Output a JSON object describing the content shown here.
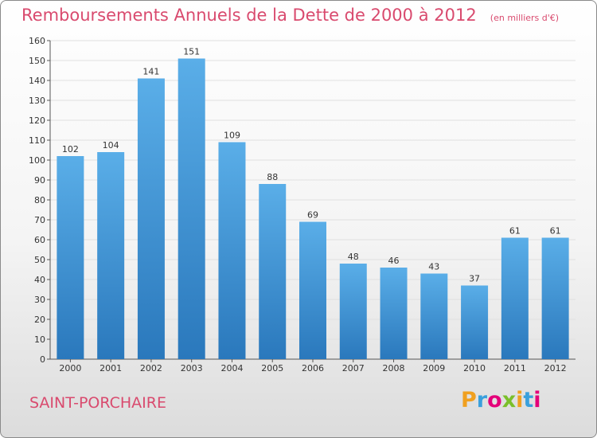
{
  "title": "Remboursements Annuels de la Dette de 2000 à 2012",
  "subtitle": "(en milliers d'€)",
  "commune": "SAINT-PORCHAIRE",
  "logo": {
    "text": "Proxiti",
    "letters": [
      {
        "char": "P",
        "color": "#f0a020"
      },
      {
        "char": "r",
        "color": "#3aa0dc"
      },
      {
        "char": "o",
        "color": "#e4007a"
      },
      {
        "char": "x",
        "color": "#7bbf2a"
      },
      {
        "char": "i",
        "color": "#f0a020"
      },
      {
        "char": "t",
        "color": "#3aa0dc"
      },
      {
        "char": "i",
        "color": "#e4007a"
      }
    ]
  },
  "colors": {
    "bar_top": "#5aaee8",
    "bar_bottom": "#2a78bc",
    "text": "#333333",
    "grid": "#e0e0e0",
    "accent": "#d94a6e"
  },
  "chart_data": {
    "type": "bar",
    "categories": [
      "2000",
      "2001",
      "2002",
      "2003",
      "2004",
      "2005",
      "2006",
      "2007",
      "2008",
      "2009",
      "2010",
      "2011",
      "2012"
    ],
    "values": [
      102,
      104,
      141,
      151,
      109,
      88,
      69,
      48,
      46,
      43,
      37,
      61,
      61
    ],
    "data_labels": [
      "102",
      "104",
      "141",
      "151",
      "109",
      "88",
      "69",
      "48",
      "46",
      "43",
      "37",
      "61",
      "61"
    ],
    "ylim": [
      0,
      160
    ],
    "yticks": [
      "0",
      "10",
      "20",
      "30",
      "40",
      "50",
      "60",
      "70",
      "80",
      "90",
      "100",
      "110",
      "120",
      "130",
      "140",
      "150",
      "160"
    ],
    "xlabel": "",
    "ylabel": "",
    "grid": true,
    "legend": "none"
  }
}
